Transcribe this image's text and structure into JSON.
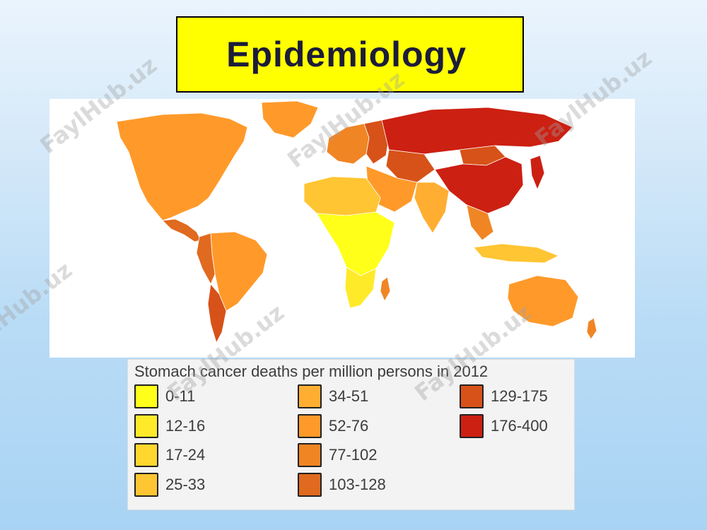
{
  "slide": {
    "title": "Epidemiology",
    "watermark_text": "FaylHub.uz"
  },
  "map": {
    "type": "choropleth-world-map",
    "subject": "Stomach cancer deaths per million persons in 2012",
    "region_classes": {
      "north_america": "52-76",
      "greenland": "52-76",
      "central_america": "103-128",
      "south_america_west": "103-128",
      "south_america_east": "52-76",
      "chile": "129-175",
      "western_europe": "77-102",
      "eastern_europe": "129-175",
      "russia": "176-400",
      "central_asia": "129-175",
      "china": "176-400",
      "mongolia": "129-175",
      "japan_korea": "176-400",
      "middle_east": "52-76",
      "india": "34-51",
      "southeast_asia": "77-102",
      "indonesia": "25-33",
      "north_africa": "25-33",
      "sub_saharan_africa": "0-11",
      "southern_africa": "12-16",
      "madagascar": "77-102",
      "australia": "52-76",
      "new_zealand": "77-102"
    }
  },
  "legend": {
    "title": "Stomach cancer deaths per million persons in 2012",
    "items": [
      {
        "label": "0-11",
        "color": "#ffff1a"
      },
      {
        "label": "12-16",
        "color": "#ffea2a"
      },
      {
        "label": "17-24",
        "color": "#ffd72e"
      },
      {
        "label": "25-33",
        "color": "#ffc532"
      },
      {
        "label": "34-51",
        "color": "#ffae32"
      },
      {
        "label": "52-76",
        "color": "#ff9a2a"
      },
      {
        "label": "77-102",
        "color": "#f08524"
      },
      {
        "label": "103-128",
        "color": "#e06a1f"
      },
      {
        "label": "129-175",
        "color": "#d75219"
      },
      {
        "label": "176-400",
        "color": "#cc2012"
      }
    ]
  }
}
